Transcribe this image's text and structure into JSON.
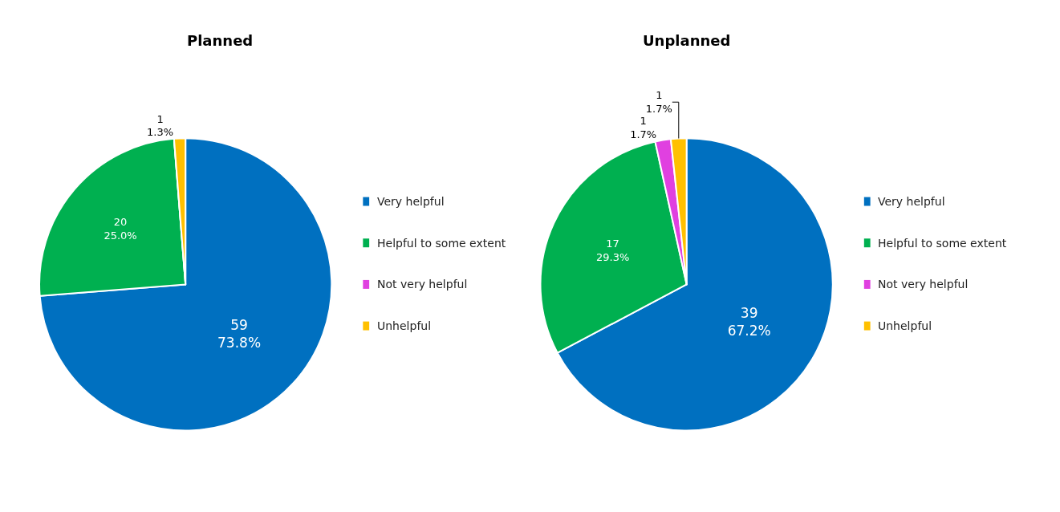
{
  "chart_data": [
    {
      "type": "pie",
      "title": "Planned",
      "categories": [
        "Very helpful",
        "Helpful to some extent",
        "Not very helpful",
        "Unhelpful"
      ],
      "values": [
        59,
        20,
        0,
        1
      ],
      "colors": [
        "#0070c0",
        "#00b050",
        "#e040e0",
        "#ffc000"
      ],
      "value_labels": [
        "59\n73.8%",
        "20\n25.0%",
        null,
        "1\n1.3%"
      ],
      "legend": "right"
    },
    {
      "type": "pie",
      "title": "Unplanned",
      "categories": [
        "Very helpful",
        "Helpful to some extent",
        "Not very helpful",
        "Unhelpful"
      ],
      "values": [
        39,
        17,
        1,
        1
      ],
      "colors": [
        "#0070c0",
        "#00b050",
        "#e040e0",
        "#ffc000"
      ],
      "value_labels": [
        "39\n67.2%",
        "17\n29.3%",
        "1\n1.7%",
        "1\n1.7%"
      ],
      "legend": "right"
    }
  ]
}
